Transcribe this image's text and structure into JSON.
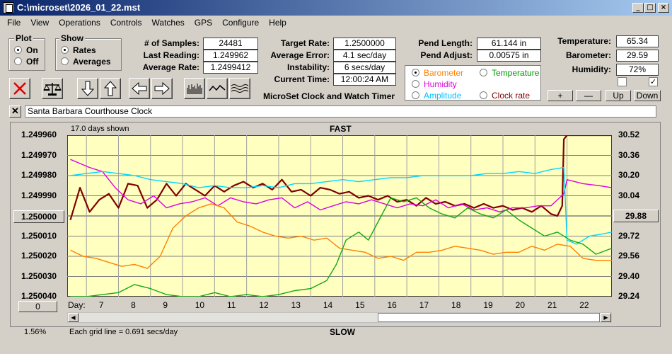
{
  "window": {
    "title": "C:\\microset\\2026_01_22.mst"
  },
  "menu": [
    "File",
    "View",
    "Operations",
    "Controls",
    "Watches",
    "GPS",
    "Configure",
    "Help"
  ],
  "plot_group": {
    "title": "Plot",
    "options": [
      "On",
      "Off"
    ],
    "selected": "On"
  },
  "show_group": {
    "title": "Show",
    "options": [
      "Rates",
      "Averages"
    ],
    "selected": "Rates"
  },
  "stats": {
    "samples_label": "# of Samples:",
    "samples": "24481",
    "last_label": "Last Reading:",
    "last": "1.249962",
    "avg_label": "Average Rate:",
    "avg": "1.2499412"
  },
  "rates": {
    "target_label": "Target Rate:",
    "target": "1.2500000",
    "avgerr_label": "Average Error:",
    "avgerr": "4.1 sec/day",
    "instab_label": "Instability:",
    "instab": "6 secs/day",
    "time_label": "Current Time:",
    "time": "12:00:24 AM"
  },
  "app_caption": "MicroSet Clock and Watch Timer",
  "pend": {
    "length_label": "Pend Length:",
    "length": "61.144 in",
    "adjust_label": "Pend Adjust:",
    "adjust": "0.00575 in"
  },
  "env": {
    "temp_label": "Temperature:",
    "temp": "65.34",
    "baro_label": "Barometer:",
    "baro": "29.59",
    "hum_label": "Humidity:",
    "hum": "72%"
  },
  "secondary_options": [
    {
      "label": "Barometer",
      "color": "#ff8000",
      "selected": true
    },
    {
      "label": "Temperature",
      "color": "#009900",
      "selected": false
    },
    {
      "label": "Humidity",
      "color": "#e000e0",
      "selected": false
    },
    {
      "label": "Amplitude",
      "color": "#00c0ff",
      "selected": false
    },
    {
      "label": "Clock rate",
      "color": "#800000",
      "selected": false
    }
  ],
  "adjust_buttons": [
    "+",
    "—",
    "Up",
    "Down"
  ],
  "checkboxes": [
    false,
    true
  ],
  "clock_name": "Santa Barbara Courthouse Clock",
  "chart_header": {
    "days_shown": "17.0 days shown",
    "fast": "FAST",
    "slow": "SLOW",
    "grid_note": "Each grid line = 0.691 secs/day",
    "percent": "1.56%",
    "day_label": "Day:"
  },
  "chart_data": {
    "type": "line",
    "left_axis_ticks": [
      "1.249960",
      "1.249970",
      "1.249980",
      "1.249990",
      "1.250000",
      "1.250010",
      "1.250020",
      "1.250030",
      "1.250040"
    ],
    "right_axis_ticks": [
      "30.52",
      "30.36",
      "30.20",
      "30.04",
      "29.88",
      "29.72",
      "29.56",
      "29.40",
      "29.24"
    ],
    "left_ylim": [
      1.24996,
      1.25004
    ],
    "right_ylim": [
      29.24,
      30.52
    ],
    "left_button": "1.250000",
    "right_button": "29.88",
    "bottom_button": "0",
    "x_ticks": [
      7,
      8,
      9,
      10,
      11,
      12,
      13,
      14,
      15,
      16,
      17,
      18,
      19,
      20,
      21,
      22
    ],
    "xlim": [
      5.9,
      22.9
    ],
    "series": [
      {
        "color": "#800000",
        "x": [
          6.0,
          6.3,
          6.6,
          6.9,
          7.2,
          7.5,
          7.8,
          8.1,
          8.4,
          8.7,
          9.0,
          9.3,
          9.6,
          9.9,
          10.2,
          10.5,
          10.8,
          11.1,
          11.4,
          11.7,
          12.0,
          12.3,
          12.6,
          12.9,
          13.2,
          13.5,
          13.8,
          14.1,
          14.4,
          14.7,
          15.0,
          15.3,
          15.6,
          15.9,
          16.2,
          16.5,
          16.8,
          17.1,
          17.4,
          17.7,
          18.0,
          18.3,
          18.6,
          18.9,
          19.2,
          19.5,
          19.8,
          20.1,
          20.4,
          20.7,
          21.0,
          21.2,
          21.35,
          21.4,
          21.5,
          22.9
        ],
        "y": [
          1.250002,
          1.249986,
          1.249998,
          1.249992,
          1.249989,
          1.249996,
          1.249984,
          1.249985,
          1.249996,
          1.249992,
          1.249984,
          1.24999,
          1.249984,
          1.249987,
          1.24999,
          1.249985,
          1.249988,
          1.249985,
          1.249983,
          1.249986,
          1.249984,
          1.249987,
          1.249982,
          1.249988,
          1.249987,
          1.24999,
          1.249986,
          1.249987,
          1.249989,
          1.249988,
          1.249991,
          1.24999,
          1.249992,
          1.24999,
          1.249993,
          1.249992,
          1.249995,
          1.249991,
          1.249994,
          1.249993,
          1.249995,
          1.249994,
          1.249996,
          1.249994,
          1.249996,
          1.249995,
          1.249997,
          1.249996,
          1.249998,
          1.249995,
          1.249999,
          1.25,
          1.249995,
          1.249962,
          1.24996,
          1.24996
        ]
      },
      {
        "color": "#e000e0",
        "x": [
          6.0,
          6.3,
          6.6,
          7.0,
          7.4,
          7.8,
          8.2,
          8.6,
          9.0,
          9.4,
          9.8,
          10.2,
          10.6,
          11.0,
          11.4,
          11.8,
          12.2,
          12.6,
          13.0,
          13.4,
          13.8,
          14.2,
          14.6,
          15.0,
          15.4,
          15.8,
          16.2,
          16.6,
          17.0,
          17.4,
          17.8,
          18.2,
          18.6,
          19.0,
          19.4,
          19.8,
          20.2,
          20.6,
          21.0,
          21.4,
          21.5,
          22.0,
          22.5,
          22.9
        ],
        "y": [
          1.249972,
          1.249974,
          1.249976,
          1.249978,
          1.249986,
          1.249992,
          1.249994,
          1.24999,
          1.249996,
          1.249994,
          1.249993,
          1.249991,
          1.249995,
          1.249991,
          1.249993,
          1.249994,
          1.249992,
          1.249991,
          1.249996,
          1.249993,
          1.249997,
          1.249995,
          1.249993,
          1.249994,
          1.249992,
          1.249994,
          1.249996,
          1.249994,
          1.249995,
          1.249992,
          1.249996,
          1.249994,
          1.249997,
          1.249996,
          1.249998,
          1.249996,
          1.249996,
          1.249995,
          1.249995,
          1.249989,
          1.249982,
          1.249984,
          1.249985,
          1.249986
        ]
      },
      {
        "color": "#00d8ff",
        "x": [
          6.0,
          6.5,
          7.0,
          7.5,
          8.0,
          8.5,
          9.0,
          9.5,
          10.0,
          10.5,
          11.0,
          11.5,
          12.0,
          12.5,
          13.0,
          13.5,
          14.0,
          14.5,
          15.0,
          15.5,
          16.0,
          16.5,
          17.0,
          17.5,
          18.0,
          18.5,
          19.0,
          19.5,
          20.0,
          20.5,
          21.0,
          21.4,
          21.5,
          21.8,
          22.2,
          22.6,
          22.9
        ],
        "y": [
          1.24998,
          1.249979,
          1.249978,
          1.249979,
          1.24998,
          1.249982,
          1.249983,
          1.249984,
          1.249986,
          1.249985,
          1.249986,
          1.249986,
          1.249985,
          1.249986,
          1.249984,
          1.249984,
          1.249983,
          1.249982,
          1.249983,
          1.249982,
          1.249981,
          1.249981,
          1.24998,
          1.24998,
          1.24998,
          1.24998,
          1.249979,
          1.249979,
          1.249978,
          1.249979,
          1.249977,
          1.249976,
          1.250012,
          1.250014,
          1.25001,
          1.250009,
          1.250008
        ]
      },
      {
        "color": "#ff8000",
        "x": [
          6.0,
          6.4,
          6.8,
          7.2,
          7.6,
          8.0,
          8.4,
          8.8,
          9.2,
          9.6,
          10.0,
          10.4,
          10.8,
          11.2,
          11.6,
          12.0,
          12.4,
          12.8,
          13.2,
          13.6,
          14.0,
          14.4,
          14.8,
          15.2,
          15.6,
          16.0,
          16.4,
          16.8,
          17.2,
          17.6,
          18.0,
          18.4,
          18.8,
          19.2,
          19.6,
          20.0,
          20.4,
          20.8,
          21.2,
          21.6,
          22.0,
          22.4,
          22.9
        ],
        "y": [
          1.250017,
          1.25002,
          1.250021,
          1.250023,
          1.250025,
          1.250024,
          1.250026,
          1.25002,
          1.250006,
          1.25,
          1.249996,
          1.249994,
          1.249996,
          1.250003,
          1.250005,
          1.250008,
          1.25001,
          1.250011,
          1.25001,
          1.250012,
          1.250011,
          1.250016,
          1.250017,
          1.250018,
          1.250021,
          1.25002,
          1.250022,
          1.250018,
          1.250018,
          1.250017,
          1.250015,
          1.250016,
          1.250017,
          1.250019,
          1.250018,
          1.250018,
          1.250015,
          1.250017,
          1.250014,
          1.250015,
          1.250021,
          1.250022,
          1.250022
        ]
      },
      {
        "color": "#11a811",
        "x": [
          6.0,
          6.5,
          7.0,
          7.5,
          8.0,
          8.5,
          9.0,
          9.5,
          10.0,
          10.5,
          11.0,
          11.5,
          12.0,
          12.5,
          13.0,
          13.5,
          14.0,
          14.3,
          14.6,
          15.0,
          15.3,
          15.6,
          16.0,
          16.4,
          16.8,
          17.2,
          17.6,
          18.0,
          18.4,
          18.8,
          19.2,
          19.6,
          20.0,
          20.4,
          20.8,
          21.2,
          21.6,
          22.0,
          22.4,
          22.9
        ],
        "y": [
          1.25004,
          1.25004,
          1.250039,
          1.250038,
          1.250034,
          1.250036,
          1.250039,
          1.25004,
          1.25004,
          1.250038,
          1.25004,
          1.250039,
          1.25004,
          1.250039,
          1.250037,
          1.250036,
          1.250032,
          1.250024,
          1.250012,
          1.250008,
          1.250012,
          1.250003,
          1.249991,
          1.249993,
          1.249991,
          1.249996,
          1.249999,
          1.250001,
          1.249996,
          1.249999,
          1.250001,
          1.249997,
          1.250002,
          1.250006,
          1.25001,
          1.250008,
          1.250012,
          1.250014,
          1.250019,
          1.250016
        ]
      }
    ]
  }
}
